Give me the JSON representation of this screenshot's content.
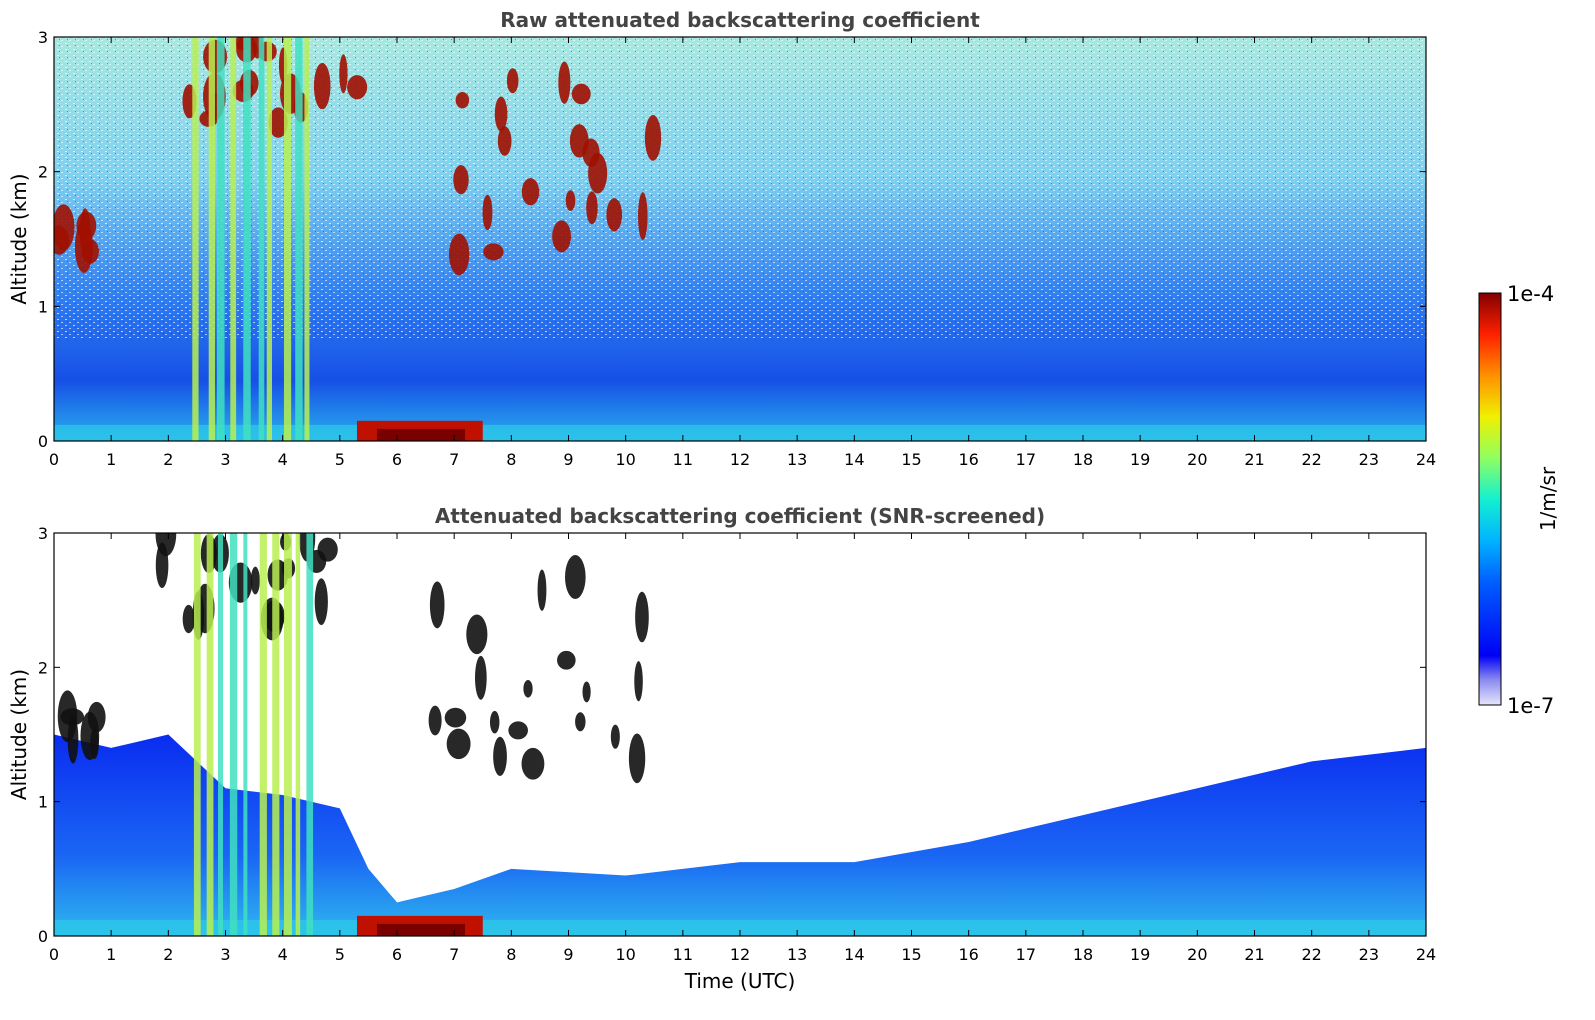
{
  "chart_data": [
    {
      "type": "heatmap",
      "title": "Raw attenuated backscattering coefficient",
      "xlabel": "",
      "ylabel": "Altitude (km)",
      "xlim": [
        0,
        24
      ],
      "ylim": [
        0,
        3
      ],
      "x_ticks": [
        "0",
        "1",
        "2",
        "3",
        "4",
        "5",
        "6",
        "7",
        "8",
        "9",
        "10",
        "11",
        "12",
        "13",
        "14",
        "15",
        "16",
        "17",
        "18",
        "19",
        "20",
        "21",
        "22",
        "23",
        "24"
      ],
      "y_ticks": [
        "0",
        "1",
        "2",
        "3"
      ],
      "features": [
        {
          "label": "cloud layer",
          "t_start": 0.0,
          "t_end": 0.8,
          "alt_min": 1.35,
          "alt_max": 1.65
        },
        {
          "label": "mid-level cloud patches",
          "t_start": 1.8,
          "t_end": 5.4,
          "alt_min": 2.3,
          "alt_max": 3.0
        },
        {
          "label": "precipitation streaks",
          "t_start": 2.4,
          "t_end": 4.5,
          "alt_min": 0.0,
          "alt_max": 3.0
        },
        {
          "label": "near-surface fog",
          "t_start": 5.3,
          "t_end": 7.5,
          "alt_min": 0.0,
          "alt_max": 0.15
        },
        {
          "label": "cloud patches",
          "t_start": 6.6,
          "t_end": 10.6,
          "alt_min": 1.2,
          "alt_max": 2.7
        }
      ]
    },
    {
      "type": "heatmap",
      "title": "Attenuated backscattering coefficient (SNR-screened)",
      "xlabel": "Time (UTC)",
      "ylabel": "Altitude (km)",
      "xlim": [
        0,
        24
      ],
      "ylim": [
        0,
        3
      ],
      "x_ticks": [
        "0",
        "1",
        "2",
        "3",
        "4",
        "5",
        "6",
        "7",
        "8",
        "9",
        "10",
        "11",
        "12",
        "13",
        "14",
        "15",
        "16",
        "17",
        "18",
        "19",
        "20",
        "21",
        "22",
        "23",
        "24"
      ],
      "y_ticks": [
        "0",
        "1",
        "2",
        "3"
      ],
      "boundary_layer_top_km": [
        [
          0,
          1.5
        ],
        [
          1,
          1.4
        ],
        [
          2,
          1.5
        ],
        [
          3,
          1.1
        ],
        [
          4,
          1.05
        ],
        [
          5,
          0.95
        ],
        [
          5.5,
          0.5
        ],
        [
          6,
          0.25
        ],
        [
          7,
          0.35
        ],
        [
          8,
          0.5
        ],
        [
          10,
          0.45
        ],
        [
          12,
          0.55
        ],
        [
          14,
          0.55
        ],
        [
          16,
          0.7
        ],
        [
          18,
          0.9
        ],
        [
          20,
          1.1
        ],
        [
          22,
          1.3
        ],
        [
          24,
          1.4
        ]
      ]
    }
  ],
  "colorbar": {
    "label": "1/m/sr",
    "max_label": "1e-4",
    "min_label": "1e-7",
    "scale": "log",
    "colormap": "jet"
  }
}
